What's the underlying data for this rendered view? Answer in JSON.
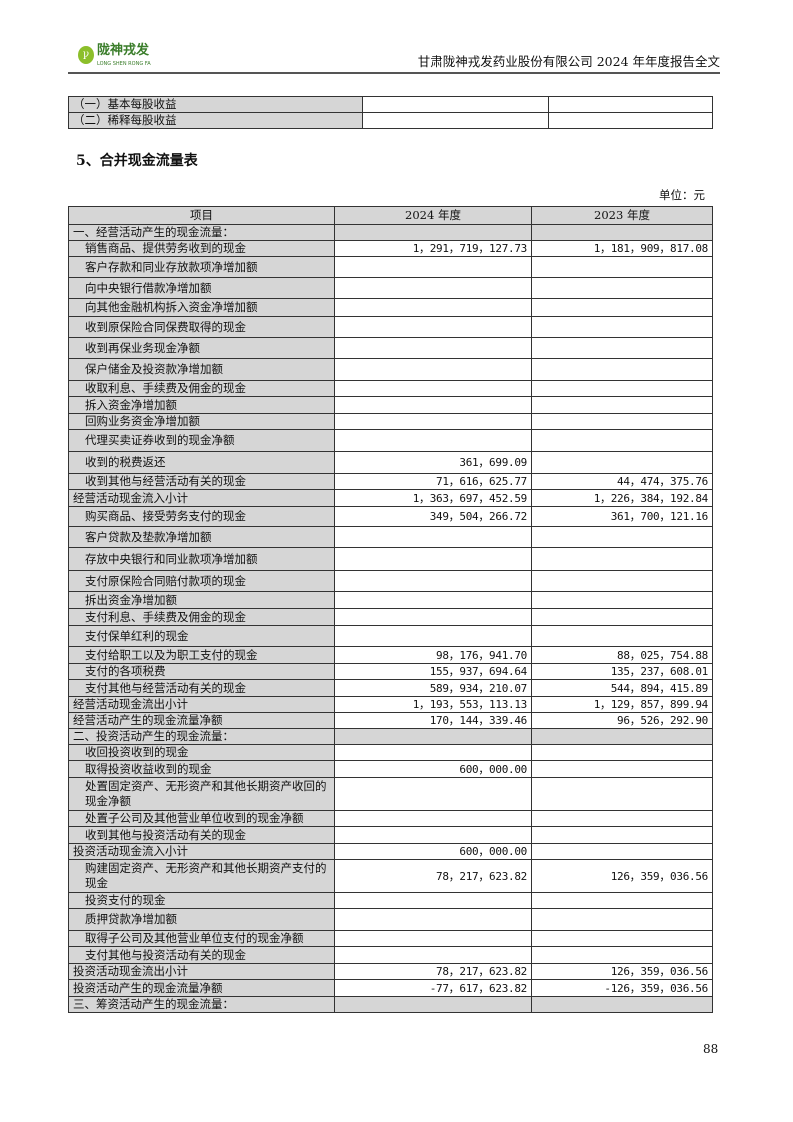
{
  "header": {
    "logo_cn": "陇神戎发",
    "logo_en": "LONG SHEN RONG FA",
    "title": "甘肃陇神戎发药业股份有限公司 2024 年年度报告全文"
  },
  "eps_table": {
    "rows": [
      [
        "（一）基本每股收益",
        "",
        ""
      ],
      [
        "（二）稀释每股收益",
        "",
        ""
      ]
    ]
  },
  "section_title": "5、合并现金流量表",
  "unit": "单位：元",
  "cashflow": {
    "columns": [
      "项目",
      "2024 年度",
      "2023 年度"
    ],
    "rows": [
      [
        "一、经营活动产生的现金流量：",
        "",
        "",
        "section"
      ],
      [
        "销售商品、提供劳务收到的现金",
        "1，291，719，127.73",
        "1，181，909，817.08",
        "indent"
      ],
      [
        "客户存款和同业存放款项净增加额",
        "",
        "",
        "indent"
      ],
      [
        "向中央银行借款净增加额",
        "",
        "",
        "indent"
      ],
      [
        "向其他金融机构拆入资金净增加额",
        "",
        "",
        "indent"
      ],
      [
        "收到原保险合同保费取得的现金",
        "",
        "",
        "indent"
      ],
      [
        "收到再保业务现金净额",
        "",
        "",
        "indent"
      ],
      [
        "保户储金及投资款净增加额",
        "",
        "",
        "indent"
      ],
      [
        "收取利息、手续费及佣金的现金",
        "",
        "",
        "indent"
      ],
      [
        "拆入资金净增加额",
        "",
        "",
        "indent"
      ],
      [
        "回购业务资金净增加额",
        "",
        "",
        "indent"
      ],
      [
        "代理买卖证券收到的现金净额",
        "",
        "",
        "indent"
      ],
      [
        "收到的税费返还",
        "361，699.09",
        "",
        "indent"
      ],
      [
        "收到其他与经营活动有关的现金",
        "71，616，625.77",
        "44，474，375.76",
        "indent"
      ],
      [
        "经营活动现金流入小计",
        "1，363，697，452.59",
        "1，226，384，192.84",
        "total"
      ],
      [
        "购买商品、接受劳务支付的现金",
        "349，504，266.72",
        "361，700，121.16",
        "indent"
      ],
      [
        "客户贷款及垫款净增加额",
        "",
        "",
        "indent"
      ],
      [
        "存放中央银行和同业款项净增加额",
        "",
        "",
        "indent"
      ],
      [
        "支付原保险合同赔付款项的现金",
        "",
        "",
        "indent"
      ],
      [
        "拆出资金净增加额",
        "",
        "",
        "indent"
      ],
      [
        "支付利息、手续费及佣金的现金",
        "",
        "",
        "indent"
      ],
      [
        "支付保单红利的现金",
        "",
        "",
        "indent"
      ],
      [
        "支付给职工以及为职工支付的现金",
        "98，176，941.70",
        "88，025，754.88",
        "indent"
      ],
      [
        "支付的各项税费",
        "155，937，694.64",
        "135，237，608.01",
        "indent"
      ],
      [
        "支付其他与经营活动有关的现金",
        "589，934，210.07",
        "544，894，415.89",
        "indent"
      ],
      [
        "经营活动现金流出小计",
        "1，193，553，113.13",
        "1，129，857，899.94",
        "total"
      ],
      [
        "经营活动产生的现金流量净额",
        "170，144，339.46",
        "96，526，292.90",
        "total"
      ],
      [
        "二、投资活动产生的现金流量：",
        "",
        "",
        "section"
      ],
      [
        "收回投资收到的现金",
        "",
        "",
        "indent"
      ],
      [
        "取得投资收益收到的现金",
        "600，000.00",
        "",
        "indent"
      ],
      [
        "处置固定资产、无形资产和其他长期资产收回的现金净额",
        "",
        "",
        "indent"
      ],
      [
        "处置子公司及其他营业单位收到的现金净额",
        "",
        "",
        "indent"
      ],
      [
        "收到其他与投资活动有关的现金",
        "",
        "",
        "indent"
      ],
      [
        "投资活动现金流入小计",
        "600，000.00",
        "",
        "total"
      ],
      [
        "购建固定资产、无形资产和其他长期资产支付的现金",
        "78，217，623.82",
        "126，359，036.56",
        "indent"
      ],
      [
        "投资支付的现金",
        "",
        "",
        "indent"
      ],
      [
        "质押贷款净增加额",
        "",
        "",
        "indent"
      ],
      [
        "取得子公司及其他营业单位支付的现金净额",
        "",
        "",
        "indent"
      ],
      [
        "支付其他与投资活动有关的现金",
        "",
        "",
        "indent"
      ],
      [
        "投资活动现金流出小计",
        "78，217，623.82",
        "126，359，036.56",
        "total"
      ],
      [
        "投资活动产生的现金流量净额",
        "-77，617，623.82",
        "-126，359，036.56",
        "total"
      ],
      [
        "三、筹资活动产生的现金流量：",
        "",
        "",
        "section"
      ]
    ]
  },
  "page_number": "88"
}
